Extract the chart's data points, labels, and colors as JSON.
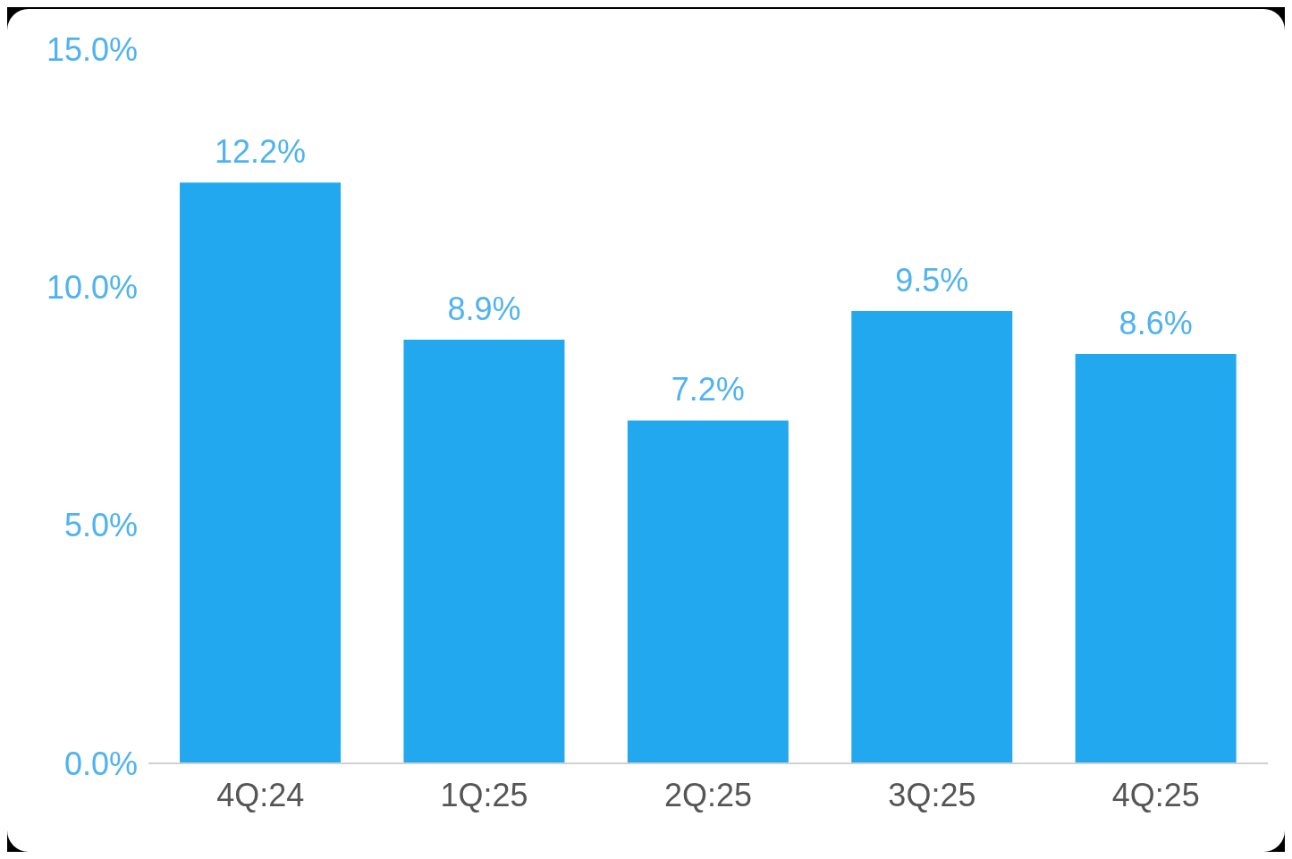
{
  "chart_data": {
    "type": "bar",
    "categories": [
      "4Q:24",
      "1Q:25",
      "2Q:25",
      "3Q:25",
      "4Q:25"
    ],
    "values": [
      12.2,
      8.9,
      7.2,
      9.5,
      8.6
    ],
    "color": "#22a8ef",
    "value_labels": [
      "12.2%",
      "8.9%",
      "7.2%",
      "9.5%",
      "8.6%"
    ],
    "ylim": [
      0,
      15
    ],
    "yticks": [
      {
        "value": 0,
        "label": "0.0%"
      },
      {
        "value": 5,
        "label": "5.0%"
      },
      {
        "value": 10,
        "label": "10.0%"
      },
      {
        "value": 15,
        "label": "15.0%"
      }
    ],
    "grid": false,
    "legend": false
  }
}
